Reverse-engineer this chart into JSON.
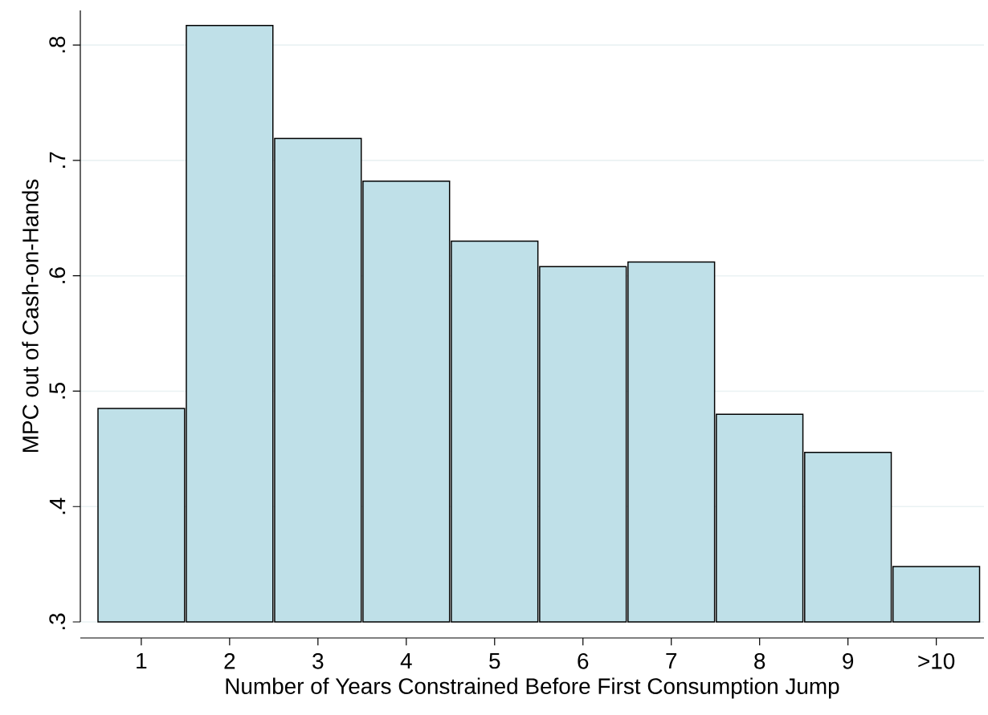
{
  "chart_data": {
    "type": "bar",
    "xlabel": "Number of Years Constrained Before First Consumption Jump",
    "ylabel": "MPC out of Cash-on-Hands",
    "categories": [
      "1",
      "2",
      "3",
      "4",
      "5",
      "6",
      "7",
      "8",
      "9",
      ">10"
    ],
    "values": [
      0.485,
      0.817,
      0.719,
      0.682,
      0.63,
      0.608,
      0.612,
      0.48,
      0.447,
      0.348
    ],
    "color": "#bfe0e8",
    "ylim": [
      0.3,
      0.83
    ],
    "yticks": [
      {
        "value": 0.3,
        "label": ".3"
      },
      {
        "value": 0.4,
        "label": ".4"
      },
      {
        "value": 0.5,
        "label": ".5"
      },
      {
        "value": 0.6,
        "label": ".6"
      },
      {
        "value": 0.7,
        "label": ".7"
      },
      {
        "value": 0.8,
        "label": ".8"
      }
    ],
    "grid": "y"
  }
}
